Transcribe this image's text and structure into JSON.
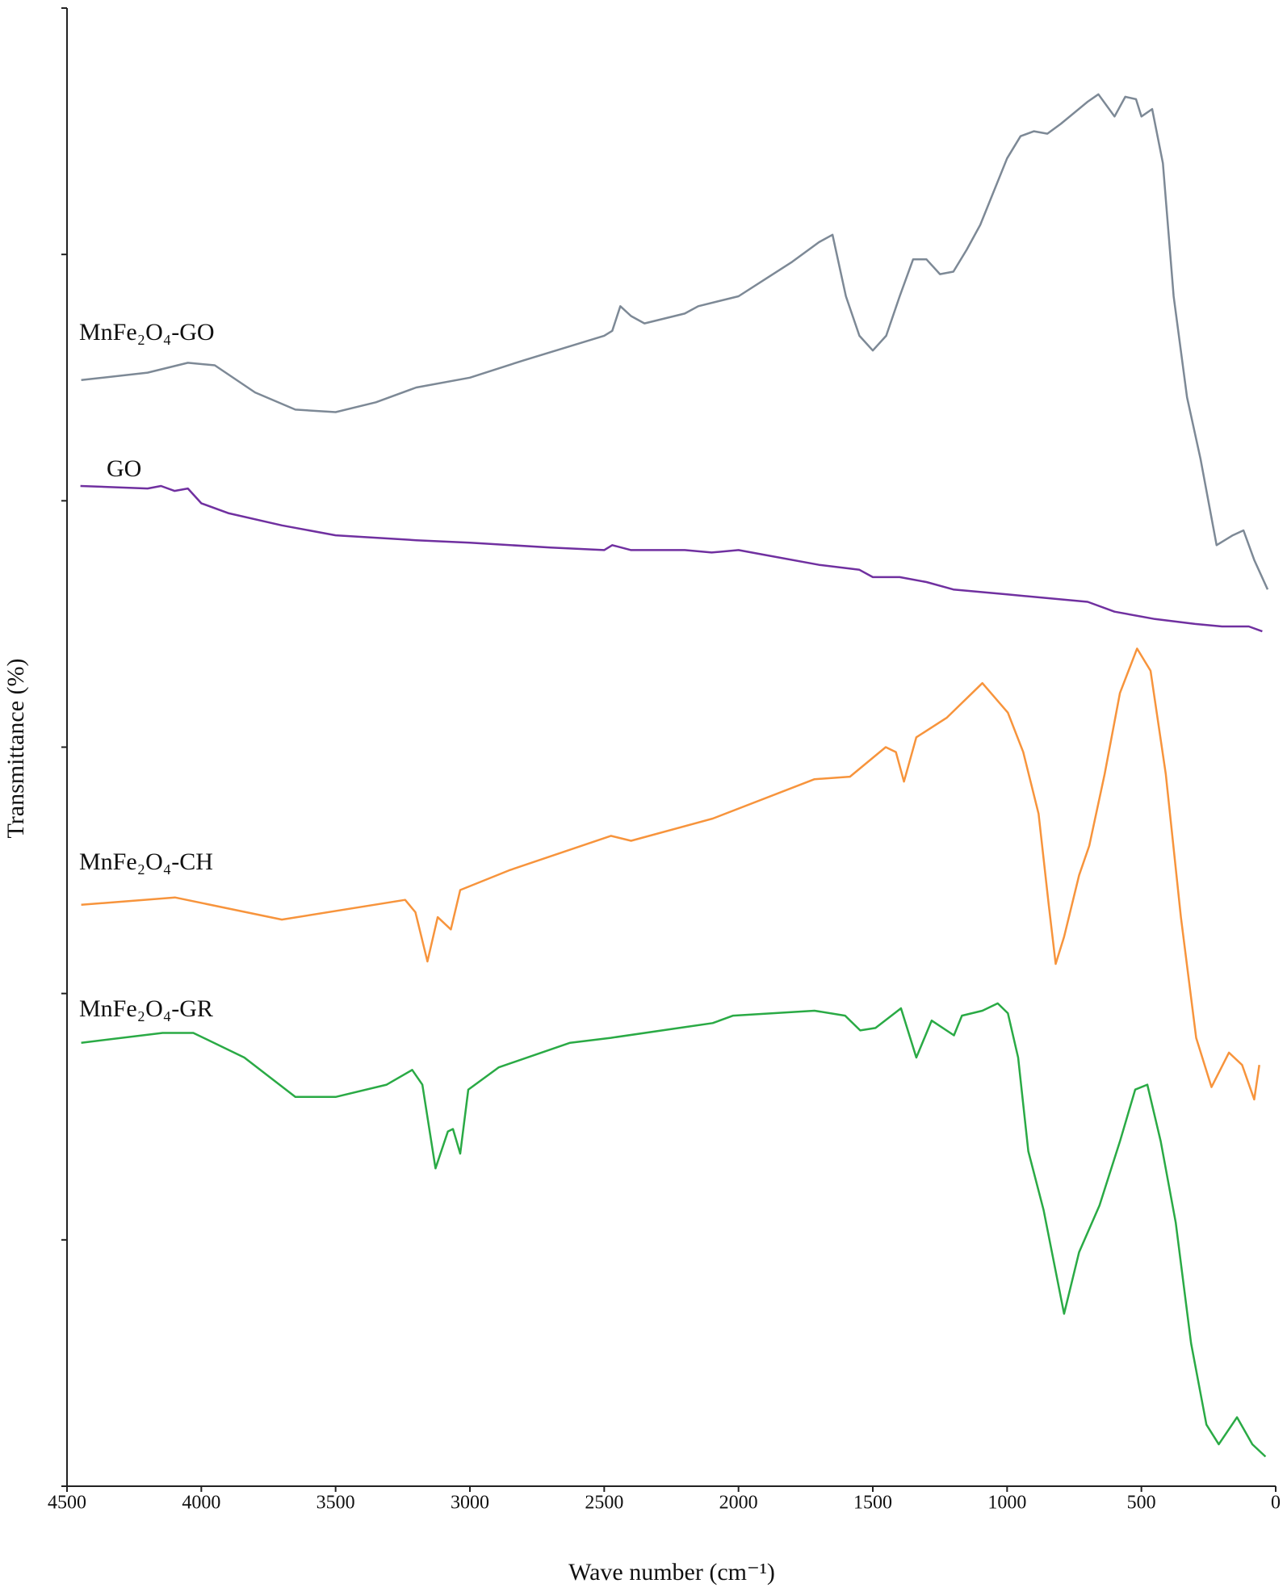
{
  "chart_data": {
    "type": "line",
    "x_label": "Wave number (cm⁻¹)",
    "y_label": "Transmittance (%)",
    "xlim": [
      4500,
      0
    ],
    "xticks": [
      4500,
      4000,
      3500,
      3000,
      2500,
      2000,
      1500,
      1000,
      500,
      0
    ],
    "ylim": [
      0,
      6
    ],
    "yticks": [
      0,
      1,
      2,
      3,
      4,
      5,
      6
    ],
    "series": [
      {
        "name": "MnFe₂O₄-GO",
        "color": "#7d8996",
        "x": [
          4447,
          4200,
          4050,
          3950,
          3800,
          3650,
          3500,
          3350,
          3200,
          3000,
          2800,
          2500,
          2470,
          2440,
          2400,
          2350,
          2200,
          2150,
          2000,
          1900,
          1800,
          1700,
          1650,
          1600,
          1550,
          1500,
          1450,
          1400,
          1350,
          1300,
          1250,
          1200,
          1150,
          1100,
          1000,
          950,
          900,
          850,
          800,
          700,
          660,
          600,
          560,
          520,
          500,
          460,
          420,
          380,
          330,
          280,
          220,
          160,
          120,
          80,
          30
        ],
        "values": [
          4.49,
          4.52,
          4.56,
          4.55,
          4.44,
          4.37,
          4.36,
          4.4,
          4.46,
          4.5,
          4.57,
          4.67,
          4.69,
          4.79,
          4.75,
          4.72,
          4.76,
          4.79,
          4.83,
          4.9,
          4.97,
          5.05,
          5.08,
          4.83,
          4.67,
          4.61,
          4.67,
          4.83,
          4.98,
          4.98,
          4.92,
          4.93,
          5.02,
          5.12,
          5.39,
          5.48,
          5.5,
          5.49,
          5.53,
          5.62,
          5.65,
          5.56,
          5.64,
          5.63,
          5.56,
          5.59,
          5.37,
          4.83,
          4.42,
          4.17,
          3.82,
          3.86,
          3.88,
          3.76,
          3.64
        ]
      },
      {
        "name": "GO",
        "color": "#7030a0",
        "x": [
          4450,
          4200,
          4150,
          4100,
          4050,
          4000,
          3900,
          3700,
          3500,
          3200,
          3000,
          2700,
          2500,
          2470,
          2400,
          2200,
          2100,
          2000,
          1900,
          1700,
          1550,
          1500,
          1400,
          1300,
          1200,
          1000,
          700,
          600,
          450,
          300,
          200,
          100,
          50
        ],
        "values": [
          4.06,
          4.05,
          4.06,
          4.04,
          4.05,
          3.99,
          3.95,
          3.9,
          3.86,
          3.84,
          3.83,
          3.81,
          3.8,
          3.82,
          3.8,
          3.8,
          3.79,
          3.8,
          3.78,
          3.74,
          3.72,
          3.69,
          3.69,
          3.67,
          3.64,
          3.62,
          3.59,
          3.55,
          3.52,
          3.5,
          3.49,
          3.49,
          3.47
        ]
      },
      {
        "name": "MnFe₂O₄-CH",
        "color": "#f7943c",
        "x": [
          4447,
          4098,
          3700,
          3241,
          3203,
          3158,
          3120,
          3071,
          3036,
          2854,
          2475,
          2400,
          2096,
          1717,
          1585,
          1452,
          1414,
          1384,
          1338,
          1224,
          1092,
          997,
          940,
          883,
          845,
          819,
          788,
          732,
          694,
          637,
          580,
          516,
          466,
          409,
          353,
          296,
          239,
          174,
          125,
          80,
          61
        ],
        "values": [
          2.36,
          2.39,
          2.3,
          2.38,
          2.33,
          2.13,
          2.31,
          2.26,
          2.42,
          2.5,
          2.64,
          2.62,
          2.71,
          2.87,
          2.88,
          3.0,
          2.98,
          2.86,
          3.04,
          3.12,
          3.26,
          3.14,
          2.98,
          2.73,
          2.36,
          2.12,
          2.23,
          2.48,
          2.6,
          2.89,
          3.22,
          3.4,
          3.31,
          2.89,
          2.31,
          1.82,
          1.62,
          1.76,
          1.71,
          1.57,
          1.71
        ]
      },
      {
        "name": "MnFe₂O₄-GR",
        "color": "#2aaa45",
        "x": [
          4447,
          4144,
          4030,
          3840,
          3650,
          3500,
          3310,
          3215,
          3177,
          3128,
          3082,
          3063,
          3036,
          3006,
          2893,
          2627,
          2475,
          2096,
          2020,
          1717,
          1603,
          1547,
          1490,
          1395,
          1338,
          1281,
          1198,
          1168,
          1092,
          1035,
          997,
          959,
          921,
          864,
          788,
          732,
          656,
          580,
          523,
          478,
          428,
          372,
          315,
          258,
          212,
          144,
          87,
          38
        ],
        "values": [
          1.8,
          1.84,
          1.84,
          1.74,
          1.58,
          1.58,
          1.63,
          1.69,
          1.63,
          1.29,
          1.44,
          1.45,
          1.35,
          1.61,
          1.7,
          1.8,
          1.82,
          1.88,
          1.91,
          1.93,
          1.91,
          1.85,
          1.86,
          1.94,
          1.74,
          1.89,
          1.83,
          1.91,
          1.93,
          1.96,
          1.92,
          1.74,
          1.36,
          1.12,
          0.7,
          0.95,
          1.14,
          1.4,
          1.61,
          1.63,
          1.4,
          1.07,
          0.58,
          0.25,
          0.17,
          0.28,
          0.17,
          0.12
        ]
      }
    ]
  }
}
